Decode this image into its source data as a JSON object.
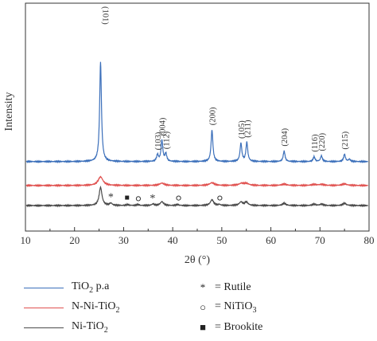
{
  "chart_data": {
    "type": "line",
    "xlabel": "2θ (°)",
    "ylabel": "Intensity",
    "xlim": [
      10,
      80
    ],
    "xticks": [
      10,
      20,
      30,
      40,
      50,
      60,
      70,
      80
    ],
    "yticks_shown": false,
    "grid": false,
    "legend_position": "bottom",
    "series": [
      {
        "name": "TiO2 p.a",
        "name_display": [
          "TiO",
          "2",
          " p.a"
        ],
        "color": "#3b6fba",
        "offset": 2.3,
        "peaks": [
          {
            "x": 25.3,
            "h": 5.2,
            "label": "(101)"
          },
          {
            "x": 36.9,
            "h": 0.35,
            "label": "(103)"
          },
          {
            "x": 37.8,
            "h": 1.1,
            "label": "(004)"
          },
          {
            "x": 38.6,
            "h": 0.4,
            "label": "(112)"
          },
          {
            "x": 48.0,
            "h": 1.65,
            "label": "(200)"
          },
          {
            "x": 53.9,
            "h": 0.95,
            "label": "(105)"
          },
          {
            "x": 55.1,
            "h": 1.0,
            "label": "(211)"
          },
          {
            "x": 62.7,
            "h": 0.55,
            "label": "(204)"
          },
          {
            "x": 68.8,
            "h": 0.25,
            "label": "(116)"
          },
          {
            "x": 70.3,
            "h": 0.3,
            "label": "(220)"
          },
          {
            "x": 75.0,
            "h": 0.38,
            "label": "(215)"
          },
          {
            "x": 76.0,
            "h": 0.12,
            "label": ""
          }
        ]
      },
      {
        "name": "N-Ni-TiO2",
        "name_display": [
          "N-Ni-TiO",
          "2",
          ""
        ],
        "color": "#e0514f",
        "offset": 1.05,
        "peaks": [
          {
            "x": 25.3,
            "h": 0.45,
            "w": 0.6
          },
          {
            "x": 37.8,
            "h": 0.12,
            "w": 0.6
          },
          {
            "x": 48.0,
            "h": 0.14,
            "w": 0.6
          },
          {
            "x": 54.0,
            "h": 0.1,
            "w": 0.6
          },
          {
            "x": 55.0,
            "h": 0.1,
            "w": 0.6
          },
          {
            "x": 62.7,
            "h": 0.07,
            "w": 0.6
          },
          {
            "x": 68.8,
            "h": 0.05,
            "w": 0.6
          },
          {
            "x": 70.3,
            "h": 0.05,
            "w": 0.6
          },
          {
            "x": 75.0,
            "h": 0.08,
            "w": 0.6
          }
        ]
      },
      {
        "name": "Ni-TiO2",
        "name_display": [
          "Ni-TiO",
          "2",
          ""
        ],
        "color": "#4a4a4a",
        "offset": 0.0,
        "peaks": [
          {
            "x": 25.3,
            "h": 0.95,
            "w": 0.35
          },
          {
            "x": 27.4,
            "h": 0.12,
            "w": 0.3
          },
          {
            "x": 30.8,
            "h": 0.05,
            "w": 0.3
          },
          {
            "x": 32.9,
            "h": 0.05,
            "w": 0.3
          },
          {
            "x": 36.0,
            "h": 0.08,
            "w": 0.3
          },
          {
            "x": 37.8,
            "h": 0.2,
            "w": 0.4
          },
          {
            "x": 41.0,
            "h": 0.05,
            "w": 0.3
          },
          {
            "x": 48.0,
            "h": 0.3,
            "w": 0.4
          },
          {
            "x": 49.5,
            "h": 0.05,
            "w": 0.3
          },
          {
            "x": 53.9,
            "h": 0.18,
            "w": 0.4
          },
          {
            "x": 55.0,
            "h": 0.18,
            "w": 0.4
          },
          {
            "x": 62.7,
            "h": 0.12,
            "w": 0.4
          },
          {
            "x": 68.8,
            "h": 0.07,
            "w": 0.4
          },
          {
            "x": 70.3,
            "h": 0.07,
            "w": 0.4
          },
          {
            "x": 75.0,
            "h": 0.12,
            "w": 0.4
          }
        ]
      }
    ],
    "phase_markers": [
      {
        "x": 27.4,
        "symbol": "*",
        "phase": "Rutile"
      },
      {
        "x": 35.9,
        "symbol": "*",
        "phase": "Rutile"
      },
      {
        "x": 30.7,
        "symbol": "■",
        "phase": "Brookite"
      },
      {
        "x": 33.0,
        "symbol": "○",
        "phase": "NiTiO3"
      },
      {
        "x": 41.2,
        "symbol": "○",
        "phase": "NiTiO3"
      },
      {
        "x": 49.6,
        "symbol": "○",
        "phase": "NiTiO3"
      }
    ],
    "phase_legend": [
      {
        "symbol": "*",
        "label": "= Rutile"
      },
      {
        "symbol": "○",
        "label": "= NiTiO",
        "sub": "3"
      },
      {
        "symbol": "■",
        "label": "= Brookite"
      }
    ]
  }
}
